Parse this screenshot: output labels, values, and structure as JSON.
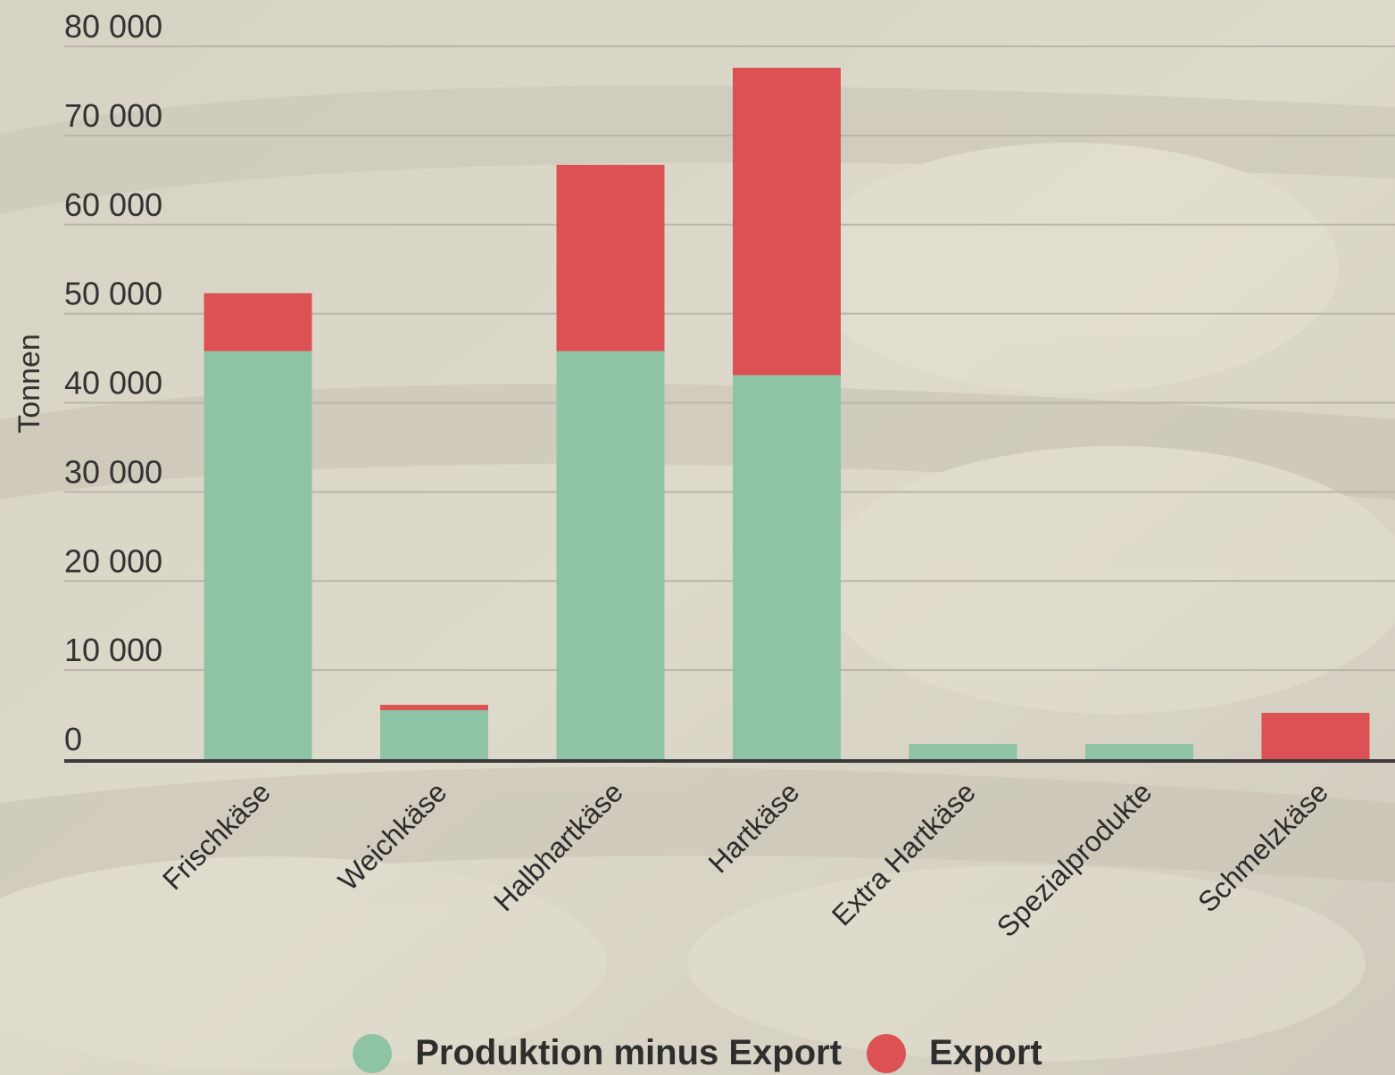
{
  "colors": {
    "production_minus_export": "#8ec3a6",
    "export": "#dc5254",
    "background": "#d8d4c8"
  },
  "chart_data": {
    "type": "bar",
    "stacked": true,
    "title": "",
    "xlabel": "",
    "ylabel": "Tonnen",
    "ylim": [
      0,
      80000
    ],
    "yticks": [
      0,
      10000,
      20000,
      30000,
      40000,
      50000,
      60000,
      70000,
      80000
    ],
    "ytick_labels": [
      "0",
      "10 000",
      "20 000",
      "30 000",
      "40 000",
      "50 000",
      "60 000",
      "70 000",
      "80 000"
    ],
    "grid": true,
    "legend_position": "bottom",
    "categories": [
      "Frischkäse",
      "Weichkäse",
      "Halbhartkäse",
      "Hartkäse",
      "Extra Hartkäse",
      "Spezialprodukte",
      "Schmelzkäse"
    ],
    "series": [
      {
        "name": "Produktion minus Export",
        "color": "#8ec3a6",
        "values": [
          45800,
          5500,
          45800,
          43100,
          1700,
          1700,
          0
        ]
      },
      {
        "name": "Export",
        "color": "#dc5254",
        "values": [
          6500,
          600,
          20900,
          34500,
          0,
          0,
          5200
        ]
      }
    ]
  }
}
